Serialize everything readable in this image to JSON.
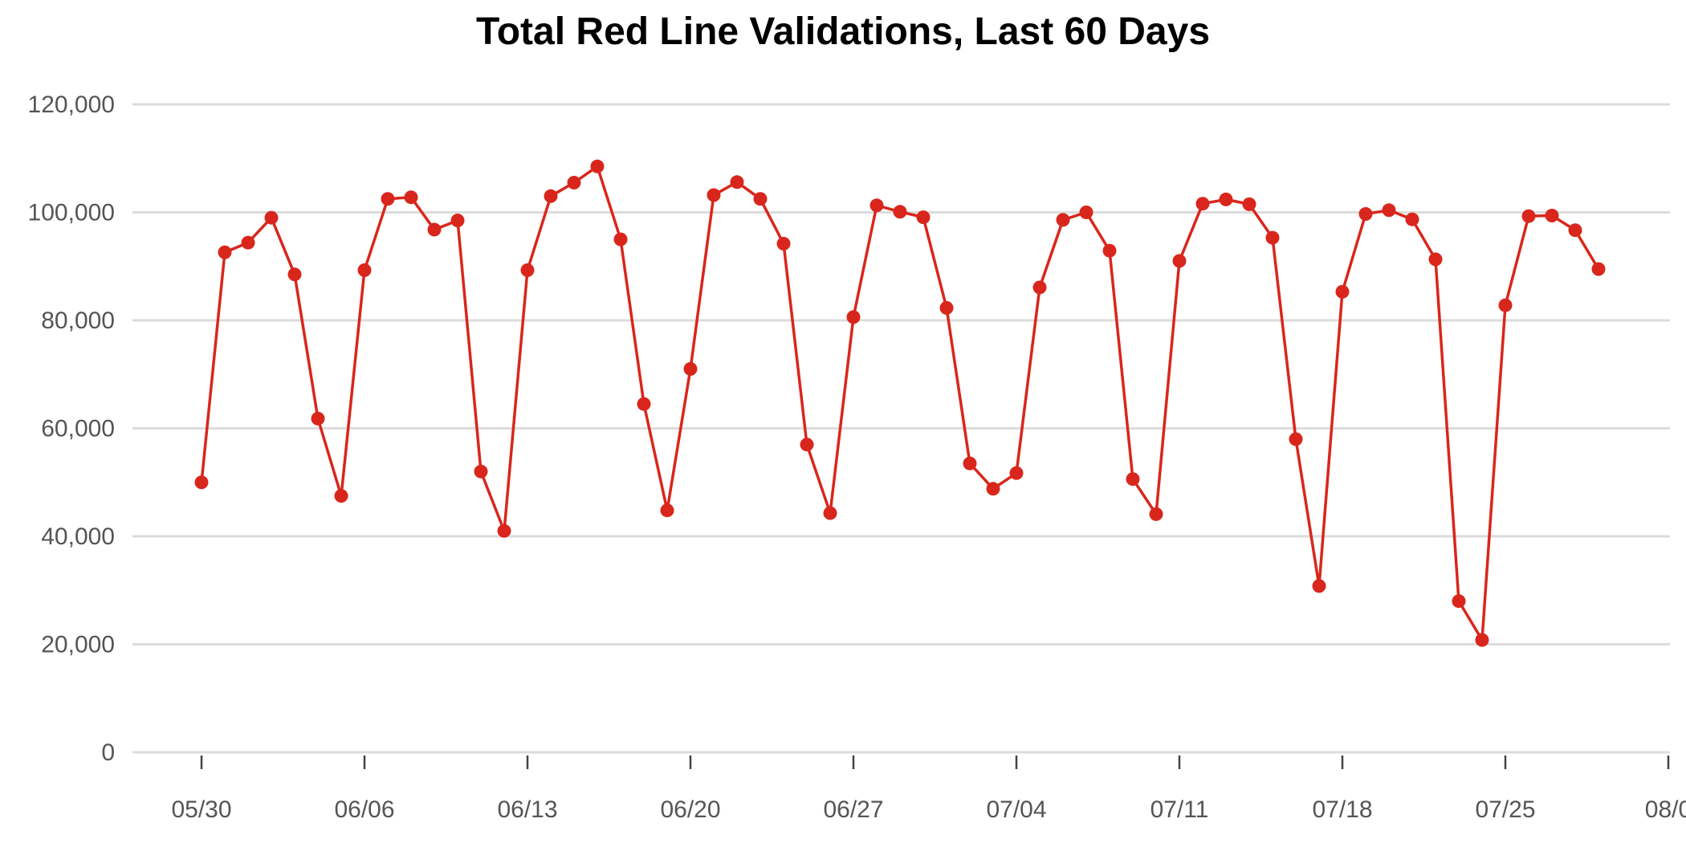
{
  "chart_data": {
    "type": "line",
    "title": "Total Red Line Validations, Last 60 Days",
    "xlabel": "",
    "ylabel": "",
    "ylim": [
      0,
      120000
    ],
    "yticks": [
      0,
      20000,
      40000,
      60000,
      80000,
      100000,
      120000
    ],
    "ytick_labels": [
      "0",
      "20,000",
      "40,000",
      "60,000",
      "80,000",
      "100,000",
      "120,000"
    ],
    "xlim": [
      "2021-05-30",
      "2021-08-01"
    ],
    "xticks": [
      "2021-05-30",
      "2021-06-06",
      "2021-06-13",
      "2021-06-20",
      "2021-06-27",
      "2021-07-04",
      "2021-07-11",
      "2021-07-18",
      "2021-07-25",
      "2021-08-01"
    ],
    "xtick_labels": [
      "05/30",
      "06/06",
      "06/13",
      "06/20",
      "06/27",
      "07/04",
      "07/11",
      "07/18",
      "07/25",
      "08/0"
    ],
    "grid": true,
    "legend": "none",
    "color": "#d9261c",
    "series": [
      {
        "x": [
          "2021-05-30",
          "2021-05-31",
          "2021-06-01",
          "2021-06-02",
          "2021-06-03",
          "2021-06-04",
          "2021-06-05",
          "2021-06-06",
          "2021-06-07",
          "2021-06-08",
          "2021-06-09",
          "2021-06-10",
          "2021-06-11",
          "2021-06-12",
          "2021-06-13",
          "2021-06-14",
          "2021-06-15",
          "2021-06-16",
          "2021-06-17",
          "2021-06-18",
          "2021-06-19",
          "2021-06-20",
          "2021-06-21",
          "2021-06-22",
          "2021-06-23",
          "2021-06-24",
          "2021-06-25",
          "2021-06-26",
          "2021-06-27",
          "2021-06-28",
          "2021-06-29",
          "2021-06-30",
          "2021-07-01",
          "2021-07-02",
          "2021-07-03",
          "2021-07-04",
          "2021-07-05",
          "2021-07-06",
          "2021-07-07",
          "2021-07-08",
          "2021-07-09",
          "2021-07-10",
          "2021-07-11",
          "2021-07-12",
          "2021-07-13",
          "2021-07-14",
          "2021-07-15",
          "2021-07-16",
          "2021-07-17",
          "2021-07-18",
          "2021-07-19",
          "2021-07-20",
          "2021-07-21",
          "2021-07-22",
          "2021-07-23",
          "2021-07-24",
          "2021-07-25",
          "2021-07-26",
          "2021-07-27",
          "2021-07-28",
          "2021-07-29"
        ],
        "values": [
          50000,
          92600,
          94400,
          99000,
          88500,
          61800,
          47500,
          89300,
          102500,
          102800,
          96800,
          98500,
          52000,
          41000,
          89300,
          103000,
          105500,
          108500,
          95000,
          64500,
          44800,
          71000,
          103200,
          105600,
          102500,
          94200,
          57000,
          44300,
          80600,
          101300,
          100100,
          99100,
          82300,
          53500,
          48800,
          51700,
          86100,
          98600,
          100000,
          92900,
          50600,
          44100,
          91000,
          101600,
          102400,
          101500,
          95300,
          58000,
          30800,
          85300,
          99700,
          100400,
          98700,
          91300,
          28000,
          20800,
          82800,
          99300,
          99400,
          96700,
          89500
        ]
      }
    ]
  }
}
